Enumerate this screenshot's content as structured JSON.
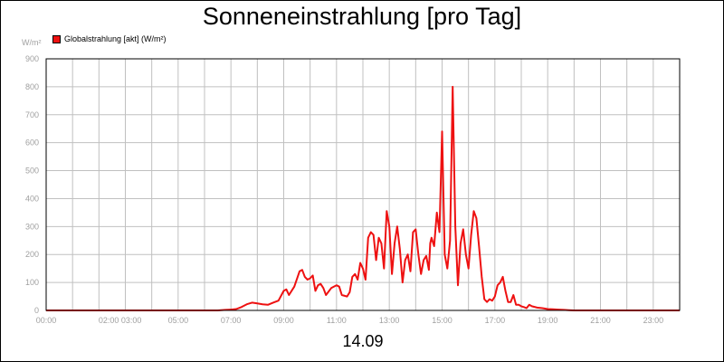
{
  "chart_data": {
    "type": "line",
    "title": "Sonneneinstrahlung [pro Tag]",
    "ylabel": "W/m²",
    "xlabel": "14.09",
    "ylim": [
      0,
      900
    ],
    "xlim": [
      0,
      24
    ],
    "y_ticks": [
      "0",
      "100",
      "200",
      "300",
      "400",
      "500",
      "600",
      "700",
      "800",
      "900"
    ],
    "x_ticks": [
      {
        "value": 0,
        "label": "00:00"
      },
      {
        "value": 2.8,
        "label": "02:00 03:00"
      },
      {
        "value": 5,
        "label": "05:00"
      },
      {
        "value": 7,
        "label": "07:00"
      },
      {
        "value": 9,
        "label": "09:00"
      },
      {
        "value": 11,
        "label": "11:00"
      },
      {
        "value": 13,
        "label": "13:00"
      },
      {
        "value": 15,
        "label": "15:00"
      },
      {
        "value": 17,
        "label": "17:00"
      },
      {
        "value": 19,
        "label": "19:00"
      },
      {
        "value": 21,
        "label": "21:00"
      },
      {
        "value": 23,
        "label": "23:00"
      }
    ],
    "grid": true,
    "legend_position": "top-left",
    "series": [
      {
        "name": "Globalstrahlung [akt] (W/m²)",
        "color": "#ee1111",
        "x": [
          0,
          1,
          2,
          3,
          4,
          5,
          6,
          6.5,
          6.8,
          7.0,
          7.2,
          7.4,
          7.6,
          7.8,
          8.0,
          8.2,
          8.4,
          8.6,
          8.8,
          9.0,
          9.1,
          9.2,
          9.4,
          9.6,
          9.7,
          9.8,
          9.9,
          10.0,
          10.1,
          10.2,
          10.3,
          10.4,
          10.5,
          10.6,
          10.8,
          11.0,
          11.1,
          11.2,
          11.4,
          11.5,
          11.6,
          11.7,
          11.8,
          11.9,
          12.0,
          12.1,
          12.2,
          12.3,
          12.4,
          12.5,
          12.6,
          12.7,
          12.8,
          12.9,
          13.0,
          13.1,
          13.2,
          13.3,
          13.4,
          13.5,
          13.6,
          13.7,
          13.8,
          13.9,
          14.0,
          14.1,
          14.2,
          14.3,
          14.4,
          14.5,
          14.55,
          14.6,
          14.7,
          14.8,
          14.9,
          15.0,
          15.1,
          15.2,
          15.3,
          15.4,
          15.5,
          15.6,
          15.7,
          15.8,
          15.9,
          16.0,
          16.1,
          16.2,
          16.3,
          16.4,
          16.5,
          16.6,
          16.7,
          16.8,
          16.9,
          17.0,
          17.1,
          17.2,
          17.3,
          17.4,
          17.5,
          17.6,
          17.7,
          17.8,
          17.9,
          18.0,
          18.1,
          18.2,
          18.3,
          18.4,
          18.6,
          18.8,
          19.0,
          19.2,
          19.4,
          19.6,
          19.8,
          20.0,
          21,
          22,
          23,
          24
        ],
        "values": [
          0,
          0,
          0,
          0,
          0,
          0,
          0,
          0,
          2,
          3,
          5,
          12,
          22,
          28,
          25,
          22,
          20,
          28,
          35,
          70,
          75,
          55,
          85,
          140,
          145,
          120,
          110,
          115,
          125,
          70,
          90,
          95,
          80,
          55,
          80,
          90,
          85,
          55,
          50,
          65,
          120,
          130,
          110,
          170,
          150,
          110,
          260,
          280,
          270,
          180,
          260,
          240,
          150,
          355,
          300,
          130,
          240,
          300,
          220,
          100,
          180,
          200,
          140,
          280,
          290,
          200,
          130,
          180,
          195,
          145,
          240,
          260,
          230,
          350,
          280,
          640,
          200,
          150,
          250,
          800,
          300,
          90,
          240,
          290,
          200,
          150,
          270,
          355,
          330,
          230,
          120,
          40,
          30,
          40,
          35,
          50,
          90,
          100,
          120,
          70,
          30,
          30,
          55,
          20,
          20,
          15,
          12,
          8,
          20,
          15,
          10,
          8,
          5,
          4,
          3,
          2,
          1,
          0,
          0,
          0,
          0,
          0
        ]
      }
    ]
  }
}
